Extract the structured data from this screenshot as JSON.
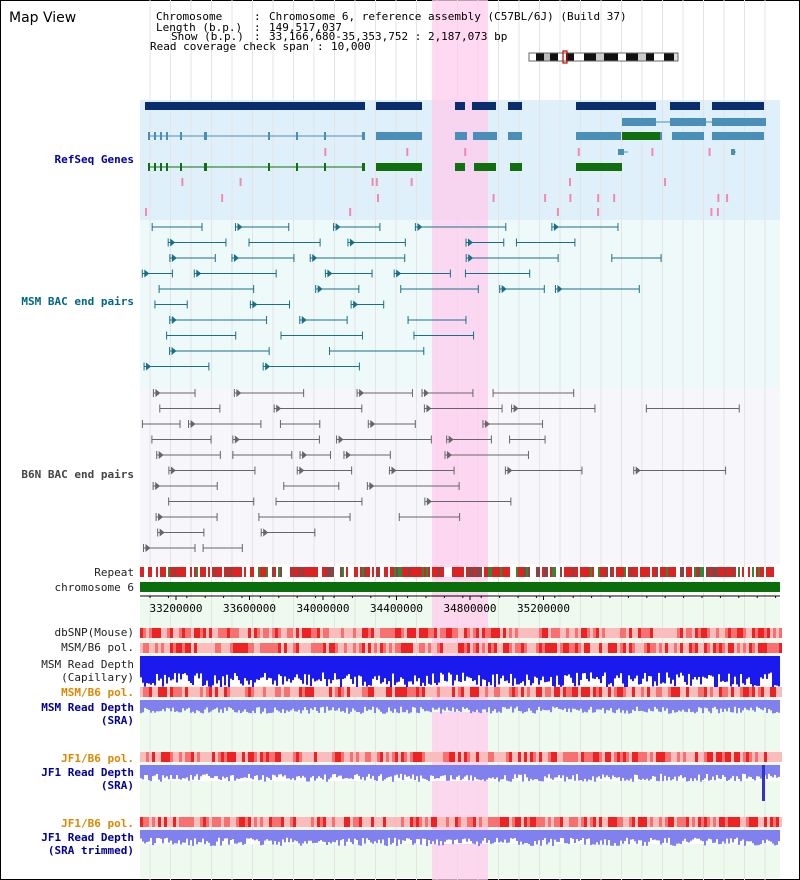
{
  "title": "Map View",
  "info": {
    "line1_key": "Chromosome",
    "line1_val": "Chromosome 6, reference assembly (C57BL/6J) (Build 37)",
    "line2_key": "Length (b.p.)",
    "line2_val": "149,517,037",
    "line3_key": "Show (b.p.)",
    "line3_val": "33,166,680-35,353,752 : 2,187,073 bp",
    "line4_key": "Read coverage check span",
    "line4_val": "10,000"
  },
  "tracks": {
    "refseq": "RefSeq Genes",
    "msm_bac": "MSM BAC end pairs",
    "b6n_bac": "B6N BAC end pairs",
    "repeat": "Repeat",
    "chromosome": "chromosome 6",
    "dbsnp": "dbSNP(Mouse)",
    "msm_pol1": "MSM/B6 pol.",
    "msm_depth1_a": "MSM Read Depth",
    "msm_depth1_b": "(Capillary)",
    "msm_pol2": "MSM/B6 pol.",
    "msm_depth2_a": "MSM Read Depth",
    "msm_depth2_b": "(SRA)",
    "jf1_pol1": "JF1/B6 pol.",
    "jf1_depth1_a": "JF1 Read Depth",
    "jf1_depth1_b": "(SRA)",
    "jf1_pol2": "JF1/B6 pol.",
    "jf1_depth2_a": "JF1 Read Depth",
    "jf1_depth2_b": "(SRA trimmed)"
  },
  "axis": {
    "ticks": [
      "33200000",
      "33600000",
      "34000000",
      "34400000",
      "34800000",
      "35200000"
    ]
  },
  "colors": {
    "refseq_bg": "#dff0fa",
    "msm_bg": "#eefafa",
    "b6n_bg": "#f5f5fa",
    "highlight": "#ffccee",
    "refseq_dark": "#0a2d6e",
    "refseq_mid": "#4a8fb8",
    "refseq_green": "#107010",
    "bac_teal": "#1a6f88",
    "bac_gray": "#666666",
    "chrom_green": "#0a6e0a",
    "depth_blue": "#1a1aee",
    "depth_light": "#8080ee"
  }
}
